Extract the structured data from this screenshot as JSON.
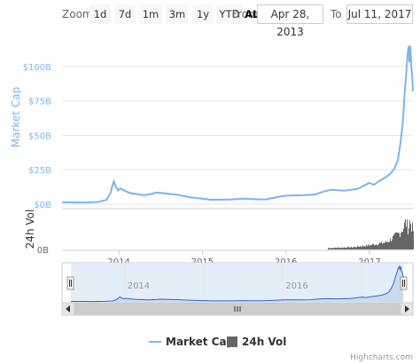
{
  "range_selector": {
    "zoom_label": "Zoom",
    "buttons": [
      "1d",
      "7d",
      "1m",
      "3m",
      "1y",
      "YTD",
      "ALL"
    ],
    "selected": "ALL",
    "from_label": "From",
    "from_value": "Apr 28, 2013",
    "to_label": "To",
    "to_value": "Jul 11, 2017"
  },
  "chart_data": {
    "type": "line",
    "title": "",
    "ylabel": "Market Cap",
    "ylabel2": "24h Vol",
    "y_ticks": [
      "$0B",
      "$25B",
      "$50B",
      "$75B",
      "$100B"
    ],
    "y2_ticks": [
      "0B"
    ],
    "ylim": [
      0,
      125
    ],
    "x_ticks": [
      "2014",
      "2015",
      "2016",
      "2017"
    ],
    "navigator_ticks": [
      "2014",
      "2016"
    ],
    "series": [
      {
        "name": "Market Cap",
        "color": "#7cb5ec",
        "points": [
          [
            2013.32,
            1.5
          ],
          [
            2013.45,
            1.3
          ],
          [
            2013.6,
            1.2
          ],
          [
            2013.75,
            1.6
          ],
          [
            2013.85,
            3.0
          ],
          [
            2013.9,
            8.0
          ],
          [
            2013.92,
            13.0
          ],
          [
            2013.94,
            16.5
          ],
          [
            2013.96,
            13.0
          ],
          [
            2013.99,
            10.0
          ],
          [
            2014.02,
            11.5
          ],
          [
            2014.08,
            9.5
          ],
          [
            2014.14,
            8.0
          ],
          [
            2014.2,
            7.5
          ],
          [
            2014.3,
            6.5
          ],
          [
            2014.4,
            7.5
          ],
          [
            2014.45,
            8.5
          ],
          [
            2014.55,
            7.8
          ],
          [
            2014.7,
            6.8
          ],
          [
            2014.85,
            5.0
          ],
          [
            2015.0,
            4.0
          ],
          [
            2015.1,
            3.2
          ],
          [
            2015.3,
            3.3
          ],
          [
            2015.5,
            4.0
          ],
          [
            2015.6,
            3.7
          ],
          [
            2015.75,
            3.4
          ],
          [
            2015.82,
            4.2
          ],
          [
            2015.9,
            5.2
          ],
          [
            2016.0,
            6.2
          ],
          [
            2016.2,
            6.5
          ],
          [
            2016.35,
            7.0
          ],
          [
            2016.45,
            9.2
          ],
          [
            2016.55,
            10.5
          ],
          [
            2016.7,
            9.8
          ],
          [
            2016.85,
            11.0
          ],
          [
            2016.95,
            14.0
          ],
          [
            2017.0,
            15.5
          ],
          [
            2017.05,
            14.0
          ],
          [
            2017.12,
            17.0
          ],
          [
            2017.18,
            19.0
          ],
          [
            2017.25,
            22.0
          ],
          [
            2017.3,
            26.0
          ],
          [
            2017.34,
            32.0
          ],
          [
            2017.37,
            44.0
          ],
          [
            2017.4,
            60.0
          ],
          [
            2017.42,
            80.0
          ],
          [
            2017.44,
            95.0
          ],
          [
            2017.455,
            108.0
          ],
          [
            2017.47,
            115.0
          ],
          [
            2017.48,
            103.0
          ],
          [
            2017.49,
            115.0
          ],
          [
            2017.5,
            100.0
          ],
          [
            2017.51,
            95.0
          ],
          [
            2017.52,
            82.0
          ]
        ]
      },
      {
        "name": "24h Vol",
        "color": "#666666",
        "points": [
          [
            2016.5,
            0.05
          ],
          [
            2016.8,
            0.08
          ],
          [
            2017.0,
            0.15
          ],
          [
            2017.1,
            0.2
          ],
          [
            2017.2,
            0.25
          ],
          [
            2017.25,
            0.35
          ],
          [
            2017.3,
            0.45
          ],
          [
            2017.35,
            0.55
          ],
          [
            2017.4,
            0.75
          ],
          [
            2017.43,
            0.95
          ],
          [
            2017.46,
            0.7
          ],
          [
            2017.48,
            1.0
          ],
          [
            2017.5,
            0.8
          ],
          [
            2017.52,
            0.65
          ]
        ]
      }
    ],
    "legend": [
      "Market Cap",
      "24h Vol"
    ],
    "credits": "Highcharts.com"
  }
}
